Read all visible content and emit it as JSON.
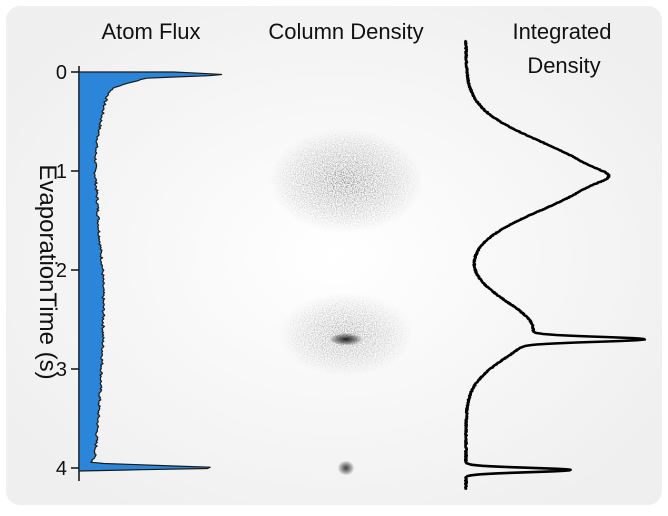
{
  "titles": {
    "flux": "Atom Flux",
    "column": "Column Density",
    "integrated_line1": "Integrated",
    "integrated_line2": "Density"
  },
  "axis": {
    "label": "EvaporationTime (s)",
    "ticks": [
      "0",
      "1",
      "2",
      "3",
      "4"
    ]
  },
  "colors": {
    "flux_fill": "#2b86d9",
    "flux_edge": "#1a1a1a",
    "density_line": "#000000",
    "cloud": "#1e1e1e"
  },
  "chart_data": [
    {
      "type": "area",
      "title": "Atom Flux",
      "ylabel": "EvaporationTime (s)",
      "ylim": [
        0,
        4.05
      ],
      "y_inverted": true,
      "orientation": "horizontal",
      "y": [
        0.0,
        0.03,
        0.06,
        0.1,
        0.15,
        0.2,
        0.3,
        0.45,
        0.6,
        0.8,
        1.0,
        1.3,
        1.6,
        2.0,
        2.4,
        2.8,
        3.2,
        3.6,
        3.8,
        3.9,
        3.95,
        4.0,
        4.03
      ],
      "values": [
        0.62,
        1.0,
        0.45,
        0.35,
        0.24,
        0.2,
        0.17,
        0.15,
        0.13,
        0.11,
        0.105,
        0.12,
        0.13,
        0.155,
        0.16,
        0.155,
        0.14,
        0.12,
        0.11,
        0.1,
        0.08,
        1.0,
        0.0
      ]
    },
    {
      "type": "heatmap",
      "title": "Column Density",
      "ylim": [
        0,
        4.05
      ],
      "clouds": [
        {
          "time": 1.1,
          "spread": 0.42,
          "width": 0.55,
          "peak": 0.7
        },
        {
          "time": 2.65,
          "spread": 0.33,
          "width": 0.48,
          "peak": 0.55
        },
        {
          "time": 2.7,
          "spread": 0.02,
          "width": 0.12,
          "peak": 1.0
        },
        {
          "time": 4.0,
          "spread": 0.03,
          "width": 0.06,
          "peak": 0.85
        }
      ]
    },
    {
      "type": "line",
      "title": "Integrated Density",
      "ylim": [
        0,
        4.05
      ],
      "y_inverted": true,
      "components": [
        {
          "center": 1.05,
          "sigma": 0.34,
          "amplitude": 0.6
        },
        {
          "center": 1.05,
          "sigma": 0.06,
          "amplitude": 0.08
        },
        {
          "center": 2.6,
          "sigma": 0.28,
          "amplitude": 0.32
        },
        {
          "center": 2.7,
          "sigma": 0.025,
          "amplitude": 0.55
        },
        {
          "center": 4.02,
          "sigma": 0.022,
          "amplitude": 0.5
        }
      ]
    }
  ]
}
